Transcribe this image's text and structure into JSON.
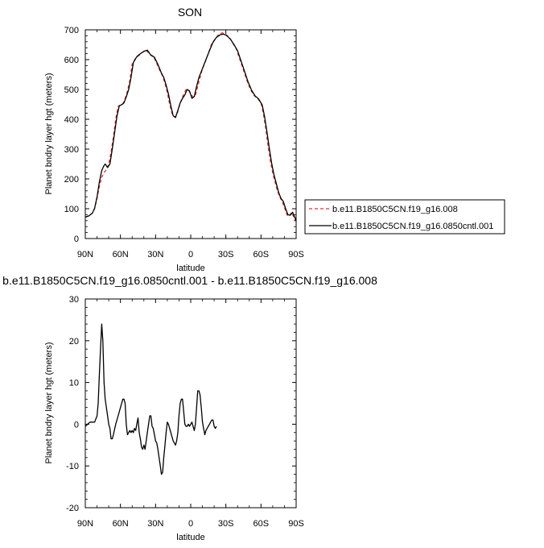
{
  "chart_data": [
    {
      "type": "line",
      "title": "SON",
      "xlabel": "latitude",
      "ylabel": "Planet bndry layer hgt (meters)",
      "xlim": [
        90,
        -90
      ],
      "ylim": [
        0,
        700
      ],
      "x_ticks": [
        90,
        60,
        30,
        0,
        -30,
        -60,
        -90
      ],
      "x_tick_labels": [
        "90N",
        "60N",
        "30N",
        "0",
        "30S",
        "60S",
        "90S"
      ],
      "y_ticks": [
        0,
        100,
        200,
        300,
        400,
        500,
        600,
        700
      ],
      "y_tick_labels": [
        "0",
        "100",
        "200",
        "300",
        "400",
        "500",
        "600",
        "700"
      ],
      "legend_position": "right",
      "series": [
        {
          "name": "b.e11.B1850C5CN.f19_g16.008",
          "color": "#e03030",
          "dash": "dashed",
          "points": [
            [
              90,
              72
            ],
            [
              87,
              76
            ],
            [
              84,
              85
            ],
            [
              82,
              100
            ],
            [
              80,
              135
            ],
            [
              78,
              175
            ],
            [
              76,
              205
            ],
            [
              74,
              222
            ],
            [
              72,
              230
            ],
            [
              70,
              250
            ],
            [
              68,
              290
            ],
            [
              66,
              340
            ],
            [
              64,
              400
            ],
            [
              62,
              443
            ],
            [
              60,
              448
            ],
            [
              58,
              450
            ],
            [
              56,
              470
            ],
            [
              54,
              495
            ],
            [
              52,
              530
            ],
            [
              50,
              585
            ],
            [
              47,
              605
            ],
            [
              44,
              615
            ],
            [
              41,
              625
            ],
            [
              38,
              632
            ],
            [
              35,
              617
            ],
            [
              32,
              612
            ],
            [
              29,
              587
            ],
            [
              26,
              560
            ],
            [
              24,
              545
            ],
            [
              22,
              520
            ],
            [
              20,
              490
            ],
            [
              18,
              450
            ],
            [
              16,
              420
            ],
            [
              14,
              408
            ],
            [
              12,
              412
            ],
            [
              10,
              440
            ],
            [
              8,
              465
            ],
            [
              6,
              485
            ],
            [
              4,
              500
            ],
            [
              2,
              498
            ],
            [
              0,
              485
            ],
            [
              -2,
              475
            ],
            [
              -4,
              480
            ],
            [
              -6,
              510
            ],
            [
              -8,
              540
            ],
            [
              -10,
              570
            ],
            [
              -12,
              588
            ],
            [
              -15,
              620
            ],
            [
              -18,
              655
            ],
            [
              -21,
              670
            ],
            [
              -24,
              685
            ],
            [
              -27,
              690
            ],
            [
              -30,
              684
            ],
            [
              -33,
              675
            ],
            [
              -36,
              655
            ],
            [
              -39,
              635
            ],
            [
              -42,
              600
            ],
            [
              -45,
              565
            ],
            [
              -48,
              530
            ],
            [
              -51,
              500
            ],
            [
              -54,
              480
            ],
            [
              -57,
              470
            ],
            [
              -60,
              455
            ],
            [
              -62,
              420
            ],
            [
              -64,
              370
            ],
            [
              -66,
              310
            ],
            [
              -68,
              260
            ],
            [
              -70,
              220
            ],
            [
              -72,
              190
            ],
            [
              -74,
              160
            ],
            [
              -76,
              140
            ],
            [
              -78,
              125
            ],
            [
              -80,
              105
            ],
            [
              -82,
              80
            ],
            [
              -84,
              75
            ],
            [
              -86,
              88
            ],
            [
              -88,
              72
            ],
            [
              -90,
              58
            ]
          ]
        },
        {
          "name": "b.e11.B1850C5CN.f19_g16.0850cntl.001",
          "color": "#000000",
          "dash": "solid",
          "points": [
            [
              90,
              72
            ],
            [
              87,
              76
            ],
            [
              84,
              85
            ],
            [
              82,
              102
            ],
            [
              80,
              140
            ],
            [
              78,
              190
            ],
            [
              76,
              228
            ],
            [
              74,
              245
            ],
            [
              73,
              250
            ],
            [
              71,
              238
            ],
            [
              69,
              250
            ],
            [
              67,
              300
            ],
            [
              65,
              355
            ],
            [
              63,
              410
            ],
            [
              61,
              445
            ],
            [
              59,
              449
            ],
            [
              57,
              455
            ],
            [
              55,
              475
            ],
            [
              53,
              500
            ],
            [
              51,
              540
            ],
            [
              49,
              590
            ],
            [
              46,
              610
            ],
            [
              43,
              620
            ],
            [
              40,
              628
            ],
            [
              37,
              632
            ],
            [
              34,
              615
            ],
            [
              31,
              608
            ],
            [
              28,
              584
            ],
            [
              25,
              555
            ],
            [
              23,
              540
            ],
            [
              21,
              515
            ],
            [
              19,
              485
            ],
            [
              17,
              445
            ],
            [
              15,
              412
            ],
            [
              13,
              406
            ],
            [
              11,
              430
            ],
            [
              9,
              455
            ],
            [
              7,
              470
            ],
            [
              5,
              482
            ],
            [
              3,
              500
            ],
            [
              1,
              495
            ],
            [
              -1,
              470
            ],
            [
              -3,
              476
            ],
            [
              -5,
              510
            ],
            [
              -7,
              540
            ],
            [
              -9,
              560
            ],
            [
              -11,
              580
            ],
            [
              -13,
              600
            ],
            [
              -16,
              630
            ],
            [
              -19,
              658
            ],
            [
              -22,
              675
            ],
            [
              -25,
              683
            ],
            [
              -28,
              686
            ],
            [
              -31,
              680
            ],
            [
              -34,
              668
            ],
            [
              -37,
              650
            ],
            [
              -40,
              630
            ],
            [
              -43,
              595
            ],
            [
              -46,
              560
            ],
            [
              -49,
              525
            ],
            [
              -52,
              497
            ],
            [
              -55,
              478
            ],
            [
              -58,
              468
            ],
            [
              -61,
              448
            ],
            [
              -63,
              410
            ],
            [
              -65,
              360
            ],
            [
              -67,
              305
            ],
            [
              -69,
              255
            ],
            [
              -71,
              215
            ],
            [
              -73,
              185
            ],
            [
              -75,
              155
            ],
            [
              -77,
              135
            ],
            [
              -79,
              125
            ],
            [
              -81,
              100
            ],
            [
              -83,
              80
            ],
            [
              -85,
              78
            ],
            [
              -87,
              88
            ],
            [
              -89,
              70
            ],
            [
              -90,
              58
            ]
          ]
        }
      ]
    },
    {
      "type": "line",
      "title": "b.e11.B1850C5CN.f19_g16.0850cntl.001 - b.e11.B1850C5CN.f19_g16.008",
      "xlabel": "latitude",
      "ylabel": "Planet bndry layer hgt (meters)",
      "xlim": [
        90,
        -90
      ],
      "ylim": [
        -20,
        30
      ],
      "x_ticks": [
        90,
        60,
        30,
        0,
        -30,
        -60,
        -90
      ],
      "x_tick_labels": [
        "90N",
        "60N",
        "30N",
        "0",
        "30S",
        "60S",
        "90S"
      ],
      "y_ticks": [
        -20,
        -10,
        0,
        10,
        20,
        30
      ],
      "y_tick_labels": [
        "-20",
        "-10",
        "0",
        "10",
        "20",
        "30"
      ],
      "series": [
        {
          "color": "#000000",
          "dash": "solid",
          "points": [
            [
              90,
              -0.5
            ],
            [
              88,
              0
            ],
            [
              86,
              0.5
            ],
            [
              84,
              0.5
            ],
            [
              82,
              0.5
            ],
            [
              80,
              2
            ],
            [
              79,
              5
            ],
            [
              78,
              12
            ],
            [
              77,
              18
            ],
            [
              76,
              24
            ],
            [
              75,
              20
            ],
            [
              74,
              10
            ],
            [
              73,
              6
            ],
            [
              72,
              4
            ],
            [
              71,
              2
            ],
            [
              70,
              0
            ],
            [
              69,
              -1
            ],
            [
              68,
              -3.5
            ],
            [
              67,
              -3.5
            ],
            [
              66,
              -2.5
            ],
            [
              64,
              0
            ],
            [
              62,
              2
            ],
            [
              60,
              4
            ],
            [
              58,
              6
            ],
            [
              57,
              6
            ],
            [
              56,
              5
            ],
            [
              55,
              0
            ],
            [
              54,
              -2.5
            ],
            [
              53,
              -2
            ],
            [
              52,
              -1.5
            ],
            [
              51,
              -2
            ],
            [
              50,
              -1.5
            ],
            [
              49,
              -2
            ],
            [
              48,
              -1
            ],
            [
              47,
              -1.5
            ],
            [
              46,
              0
            ],
            [
              45,
              1.5
            ],
            [
              44,
              -2
            ],
            [
              43,
              -3.5
            ],
            [
              42,
              -5.5
            ],
            [
              41,
              -6
            ],
            [
              40,
              -5
            ],
            [
              39,
              -6
            ],
            [
              38,
              -4
            ],
            [
              37,
              -2
            ],
            [
              36,
              0
            ],
            [
              35,
              2
            ],
            [
              34,
              2
            ],
            [
              33,
              -0.5
            ],
            [
              32,
              -1
            ],
            [
              31,
              -2.5
            ],
            [
              30,
              -4
            ],
            [
              29,
              -4.5
            ],
            [
              28,
              -6
            ],
            [
              27,
              -8
            ],
            [
              26,
              -10
            ],
            [
              25,
              -12
            ],
            [
              24,
              -11.5
            ],
            [
              23,
              -8
            ],
            [
              22,
              -5
            ],
            [
              21,
              -2
            ],
            [
              20,
              0.5
            ],
            [
              19,
              0
            ],
            [
              18,
              -1
            ],
            [
              17,
              -2
            ],
            [
              16,
              -3
            ],
            [
              15,
              -4
            ],
            [
              14,
              -4.5
            ],
            [
              13,
              -5
            ],
            [
              12,
              -4
            ],
            [
              11,
              -2
            ],
            [
              10,
              2
            ],
            [
              9,
              5
            ],
            [
              8,
              6
            ],
            [
              7,
              6
            ],
            [
              6,
              3
            ],
            [
              5,
              0
            ],
            [
              4,
              -0.5
            ],
            [
              3,
              -0.5
            ],
            [
              2,
              0
            ],
            [
              1,
              -0.5
            ],
            [
              0,
              0
            ],
            [
              -1,
              0.5
            ],
            [
              -2,
              -0.5
            ],
            [
              -3,
              -1.5
            ],
            [
              -4,
              0
            ],
            [
              -5,
              4
            ],
            [
              -6,
              8
            ],
            [
              -7,
              8
            ],
            [
              -8,
              7
            ],
            [
              -9,
              4
            ],
            [
              -10,
              0.5
            ],
            [
              -11,
              -1
            ],
            [
              -12,
              -2.5
            ],
            [
              -13,
              -1.5
            ],
            [
              -14,
              -1
            ],
            [
              -15,
              -0.5
            ],
            [
              -16,
              0
            ],
            [
              -17,
              0.5
            ],
            [
              -18,
              1
            ],
            [
              -19,
              1
            ],
            [
              -20,
              -0.5
            ],
            [
              -21,
              -1
            ],
            [
              -22,
              -0.5
            ]
          ]
        }
      ]
    }
  ]
}
